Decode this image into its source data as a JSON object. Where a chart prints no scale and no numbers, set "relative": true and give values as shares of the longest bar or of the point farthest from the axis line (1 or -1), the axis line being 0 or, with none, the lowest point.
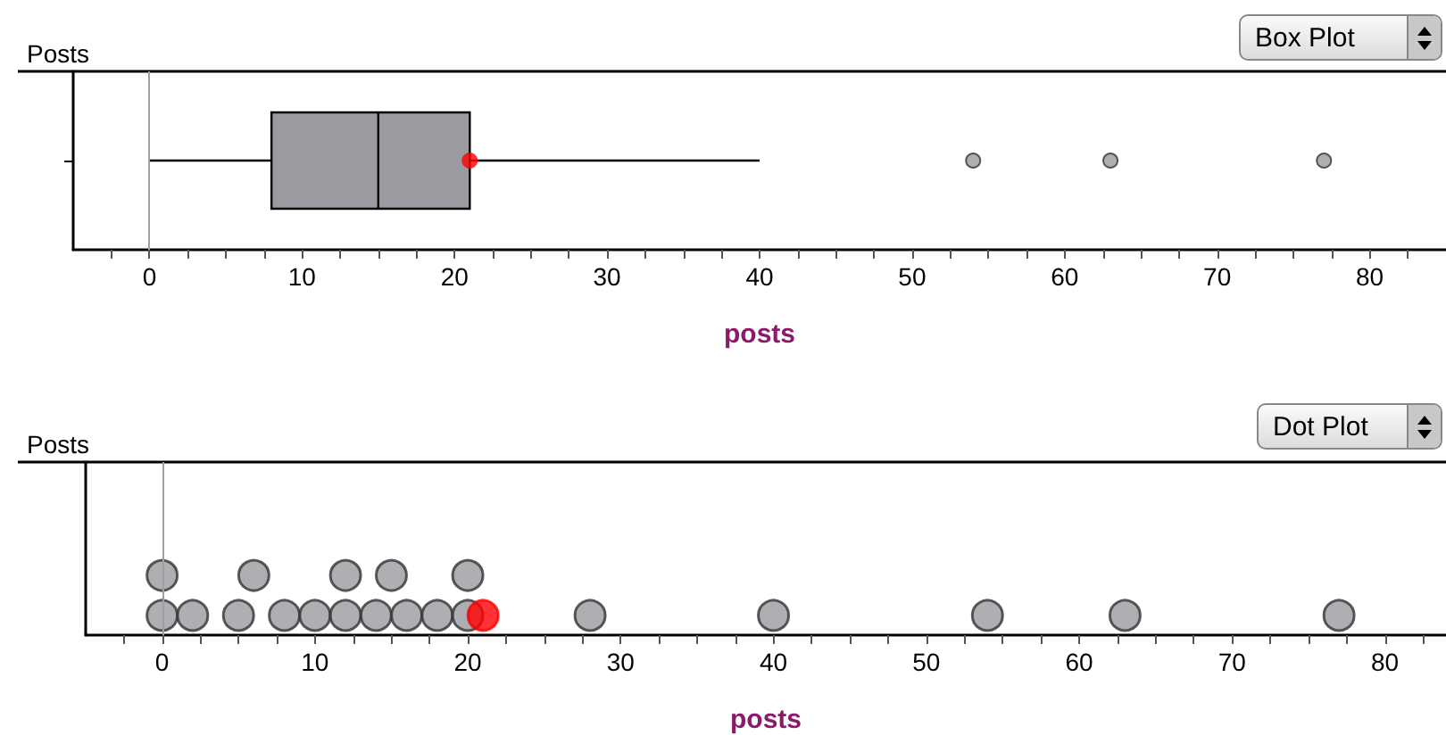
{
  "chart_data": [
    {
      "type": "box",
      "title": "Posts",
      "xlabel": "posts",
      "orientation": "horizontal",
      "categories": [
        null
      ],
      "tick_labels": "x",
      "grid": false,
      "series": [
        {
          "color": "#9a9aa0",
          "boxes": [
            {
              "low": 0,
              "q1": 8,
              "median": 15,
              "q3": 21,
              "high": 40,
              "mean": 21,
              "outliers": [
                54,
                63,
                77
              ]
            }
          ]
        }
      ],
      "xlim": [
        -5,
        85
      ],
      "xticks": [
        {
          "value": -2.5,
          "label": null
        },
        0,
        {
          "value": 2.5,
          "label": null
        },
        {
          "value": 5,
          "label": null
        },
        {
          "value": 7.5,
          "label": null
        },
        10,
        {
          "value": 12.5,
          "label": null
        },
        {
          "value": 15,
          "label": null
        },
        {
          "value": 17.5,
          "label": null
        },
        20,
        {
          "value": 22.5,
          "label": null
        },
        {
          "value": 25,
          "label": null
        },
        {
          "value": 27.5,
          "label": null
        },
        30,
        {
          "value": 32.5,
          "label": null
        },
        {
          "value": 35,
          "label": null
        },
        {
          "value": 37.5,
          "label": null
        },
        40,
        {
          "value": 42.5,
          "label": null
        },
        {
          "value": 45,
          "label": null
        },
        {
          "value": 47.5,
          "label": null
        },
        50,
        {
          "value": 52.5,
          "label": null
        },
        {
          "value": 55,
          "label": null
        },
        {
          "value": 57.5,
          "label": null
        },
        60,
        {
          "value": 62.5,
          "label": null
        },
        {
          "value": 65,
          "label": null
        },
        {
          "value": 67.5,
          "label": null
        },
        70,
        {
          "value": 72.5,
          "label": null
        },
        {
          "value": 75,
          "label": null
        },
        {
          "value": 77.5,
          "label": null
        },
        80,
        {
          "value": 82.5,
          "label": null
        }
      ],
      "ref_lines": [
        {
          "axis": "x",
          "value": 0,
          "color": "#a0a0a0"
        }
      ],
      "annotations": [
        "Box Plot"
      ]
    },
    {
      "type": "scatter",
      "title": "Posts",
      "xlabel": "posts",
      "tick_labels": "x",
      "grid": false,
      "marker": "circle",
      "relative": true,
      "series": [
        {
          "color": "#9a9aa0",
          "x": [
            0,
            2,
            5,
            8,
            10,
            12,
            14,
            16,
            18,
            20,
            0,
            6,
            12,
            15,
            20,
            28,
            40,
            54,
            63,
            77
          ],
          "values": [
            0.33,
            0.33,
            0.33,
            0.33,
            0.33,
            0.33,
            0.33,
            0.33,
            0.33,
            0.33,
            1,
            1,
            1,
            1,
            1,
            0.33,
            0.33,
            0.33,
            0.33,
            0.33
          ]
        },
        {
          "color": "#ff0000",
          "x": [
            21
          ],
          "values": [
            0.33
          ]
        }
      ],
      "xlim": [
        -5,
        84
      ],
      "xticks": [
        {
          "value": -2.5,
          "label": null
        },
        0,
        {
          "value": 2.5,
          "label": null
        },
        {
          "value": 5,
          "label": null
        },
        {
          "value": 7.5,
          "label": null
        },
        10,
        {
          "value": 12.5,
          "label": null
        },
        {
          "value": 15,
          "label": null
        },
        {
          "value": 17.5,
          "label": null
        },
        20,
        {
          "value": 22.5,
          "label": null
        },
        {
          "value": 25,
          "label": null
        },
        {
          "value": 27.5,
          "label": null
        },
        30,
        {
          "value": 32.5,
          "label": null
        },
        {
          "value": 35,
          "label": null
        },
        {
          "value": 37.5,
          "label": null
        },
        40,
        {
          "value": 42.5,
          "label": null
        },
        {
          "value": 45,
          "label": null
        },
        {
          "value": 47.5,
          "label": null
        },
        50,
        {
          "value": 52.5,
          "label": null
        },
        {
          "value": 55,
          "label": null
        },
        {
          "value": 57.5,
          "label": null
        },
        60,
        {
          "value": 62.5,
          "label": null
        },
        {
          "value": 65,
          "label": null
        },
        {
          "value": 67.5,
          "label": null
        },
        70,
        {
          "value": 72.5,
          "label": null
        },
        {
          "value": 75,
          "label": null
        },
        {
          "value": 77.5,
          "label": null
        },
        80,
        {
          "value": 82.5,
          "label": null
        }
      ],
      "ref_lines": [
        {
          "axis": "x",
          "value": 0,
          "color": "#a0a0a0"
        }
      ],
      "annotations": [
        "Dot Plot"
      ]
    }
  ]
}
